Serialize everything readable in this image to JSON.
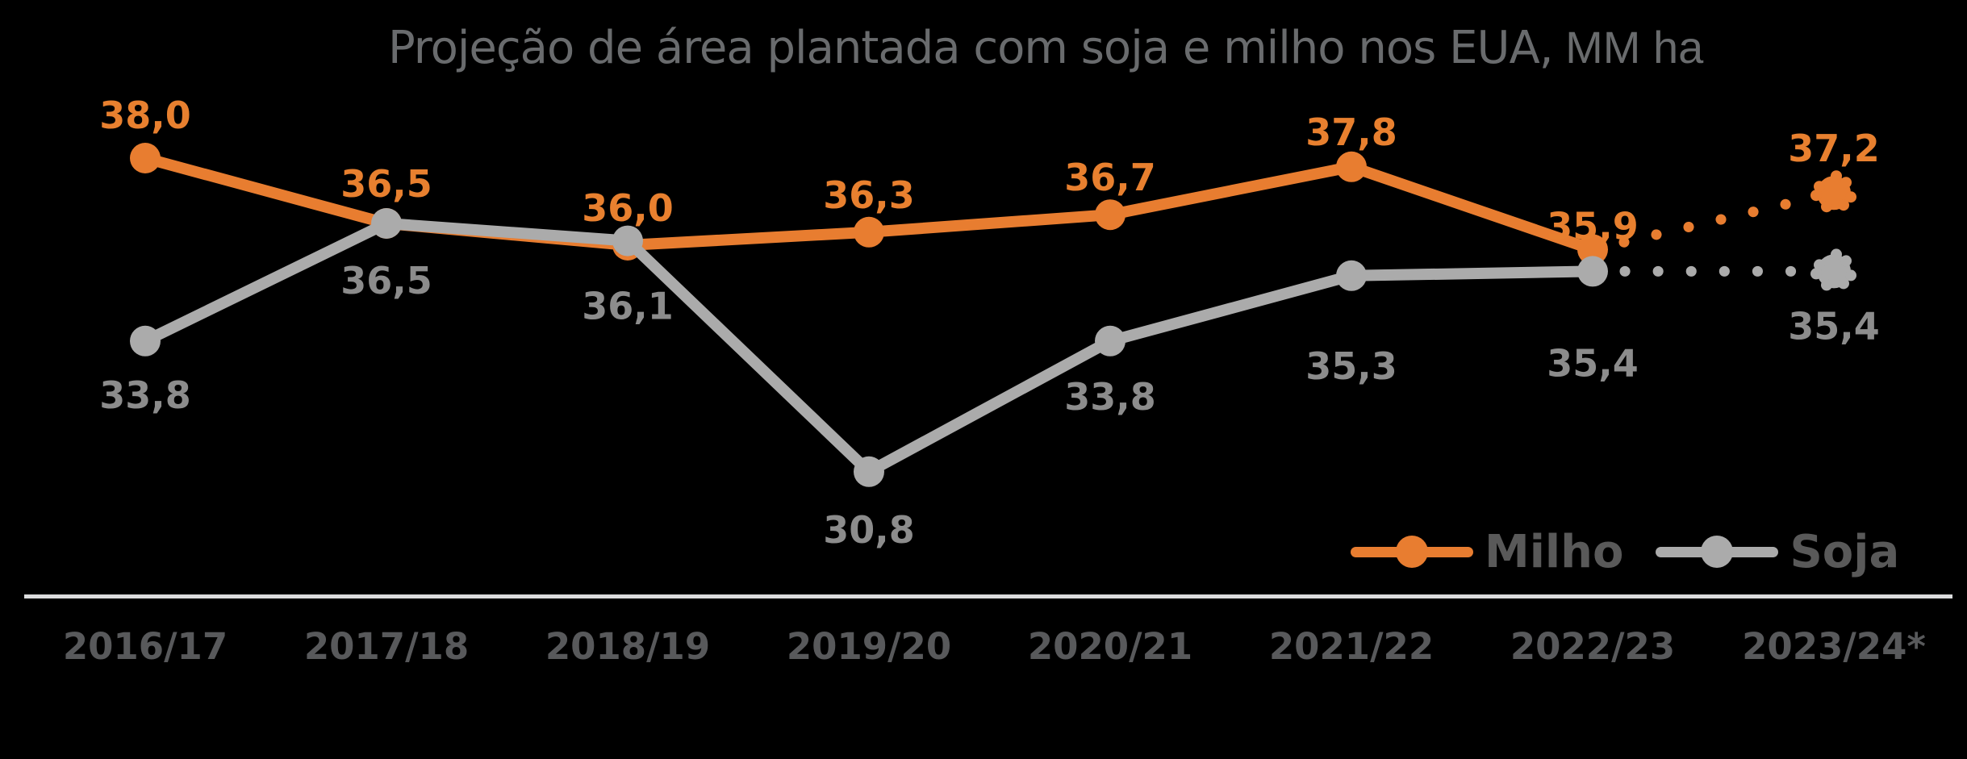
{
  "title": {
    "text": "Projeção de área plantada com soja e milho nos EUA,",
    "unit": " MM ha"
  },
  "chart_data": {
    "type": "line",
    "title": "Projeção de área plantada com soja e milho nos EUA, MM ha",
    "categories": [
      "2016/17",
      "2017/18",
      "2018/19",
      "2019/20",
      "2020/21",
      "2021/22",
      "2022/23",
      "2023/24*"
    ],
    "series": [
      {
        "name": "Milho",
        "color": "#E87D30",
        "label_color": "#E8802F",
        "values": [
          38.0,
          36.5,
          36.0,
          36.3,
          36.7,
          37.8,
          35.9,
          37.2
        ],
        "labels": [
          "38,0",
          "36,5",
          "36,0",
          "36,3",
          "36,7",
          "37,8",
          "35,9",
          "37,2"
        ],
        "label_position": "above",
        "label_dy": [
          -37,
          -33,
          -30,
          -30,
          -30,
          -27,
          -13,
          -39
        ]
      },
      {
        "name": "Soja",
        "color": "#ABABAB",
        "label_color": "#8C8C8C",
        "values": [
          33.8,
          36.5,
          36.1,
          30.8,
          33.8,
          35.3,
          35.4,
          35.4
        ],
        "labels": [
          "33,8",
          "36,5",
          "36,1",
          "30,8",
          "33,8",
          "35,3",
          "35,4",
          "35,4"
        ],
        "label_position": "below",
        "label_dy": [
          83,
          87,
          97,
          88,
          85,
          128,
          130,
          84
        ]
      }
    ],
    "forecast_from_index": 6,
    "dashed_segment": "2022/23 → 2023/24* shown dotted (projection)",
    "legend": {
      "entries": [
        "Milho",
        "Soja"
      ],
      "position": "bottom-right"
    },
    "xlabel": "",
    "ylabel": "",
    "ylim": [
      30,
      39
    ],
    "grid": false,
    "background": "#000000",
    "axis_line_color": "#DCDDDE"
  }
}
